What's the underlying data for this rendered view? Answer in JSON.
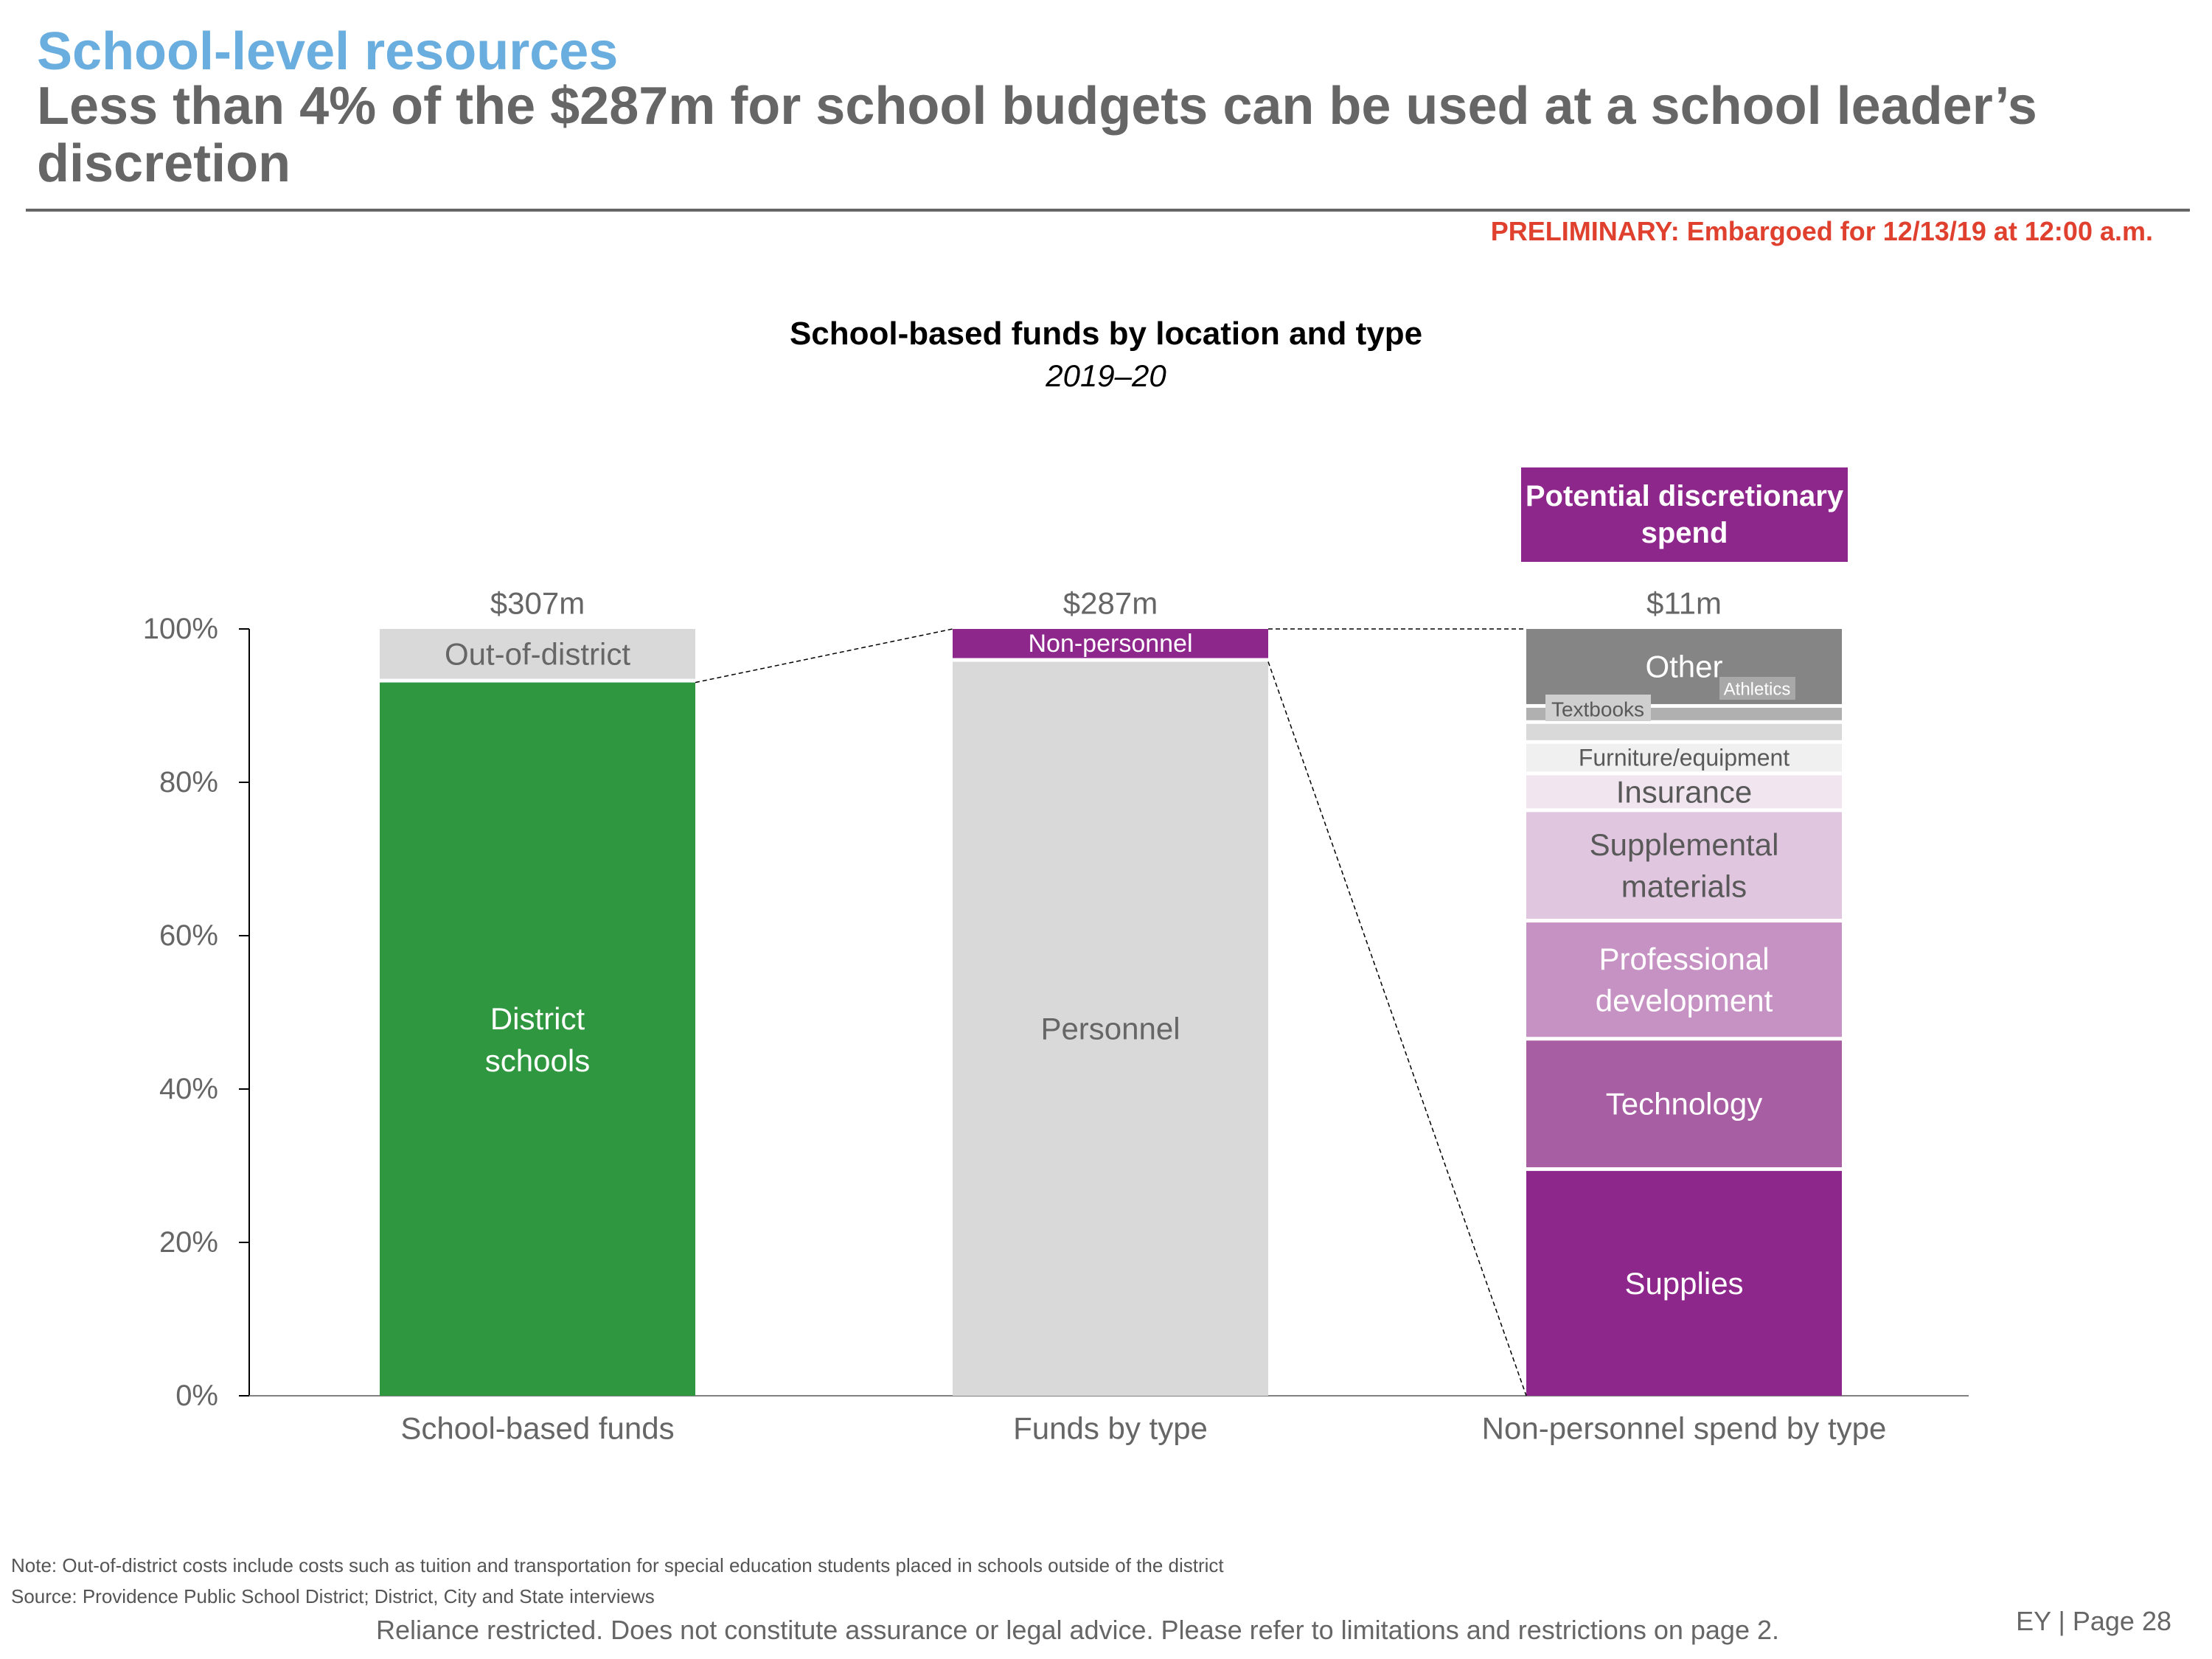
{
  "header": {
    "kicker": "School-level resources",
    "headline": "Less than 4% of the $287m for school budgets can be used at a school leader’s discretion",
    "preliminary": "PRELIMINARY: Embargoed for 12/13/19 at 12:00 a.m."
  },
  "callout": {
    "label": "Potential discretionary spend"
  },
  "footer": {
    "note": "Note: Out-of-district costs include costs such as tuition and transportation for special education students placed in schools outside of the district",
    "source": "Source: Providence Public School District; District, City and State interviews",
    "disclaimer": "Reliance restricted. Does not constitute assurance or legal advice. Please refer to limitations and restrictions on page 2.",
    "page": "EY | Page 28"
  },
  "chart_data": {
    "type": "bar",
    "stacked": true,
    "title": "School-based funds by location and type",
    "subtitle": "2019–20",
    "xlabel": "",
    "ylabel": "",
    "ylim": [
      0,
      100
    ],
    "y_ticks": [
      0,
      20,
      40,
      60,
      80,
      100
    ],
    "y_tick_labels": [
      "0%",
      "20%",
      "40%",
      "60%",
      "80%",
      "100%"
    ],
    "grid": false,
    "categories": [
      "School-based funds",
      "Funds by type",
      "Non-personnel spend by type"
    ],
    "totals": [
      "$307m",
      "$287m",
      "$11m"
    ],
    "bars": [
      {
        "category": "School-based funds",
        "segments": [
          {
            "name": "District schools",
            "value": 93.5,
            "color": "#2e973f",
            "text_color": "#ffffff"
          },
          {
            "name": "Out-of-district",
            "value": 6.5,
            "color": "#d9d9d9",
            "text_color": "#666666"
          }
        ]
      },
      {
        "category": "Funds by type",
        "segments": [
          {
            "name": "Personnel",
            "value": 96.2,
            "color": "#d9d9d9",
            "text_color": "#666666"
          },
          {
            "name": "Non-personnel",
            "value": 3.8,
            "color": "#8e278c",
            "text_color": "#ffffff"
          }
        ]
      },
      {
        "category": "Non-personnel spend by type",
        "segments": [
          {
            "name": "Supplies",
            "value": 29.8,
            "color": "#8e278c",
            "text_color": "#ffffff"
          },
          {
            "name": "Technology",
            "value": 17.0,
            "color": "#a75ea3",
            "text_color": "#ffffff"
          },
          {
            "name": "Professional development",
            "value": 15.4,
            "color": "#c692c3",
            "text_color": "#ffffff"
          },
          {
            "name": "Supplemental materials",
            "value": 14.4,
            "color": "#e0c6df",
            "text_color": "#595959"
          },
          {
            "name": "Insurance",
            "value": 4.8,
            "color": "#f1e6f0",
            "text_color": "#595959"
          },
          {
            "name": "Furniture/equipment",
            "value": 4.1,
            "color": "#f0f0f0",
            "text_color": "#595959"
          },
          {
            "name": "Textbooks",
            "value": 2.6,
            "color": "#d9d9d9",
            "text_color": "#595959"
          },
          {
            "name": "Athletics",
            "value": 2.1,
            "color": "#b0b0b0",
            "text_color": "#ffffff"
          },
          {
            "name": "Other",
            "value": 9.8,
            "color": "#858585",
            "text_color": "#ffffff"
          }
        ]
      }
    ]
  }
}
